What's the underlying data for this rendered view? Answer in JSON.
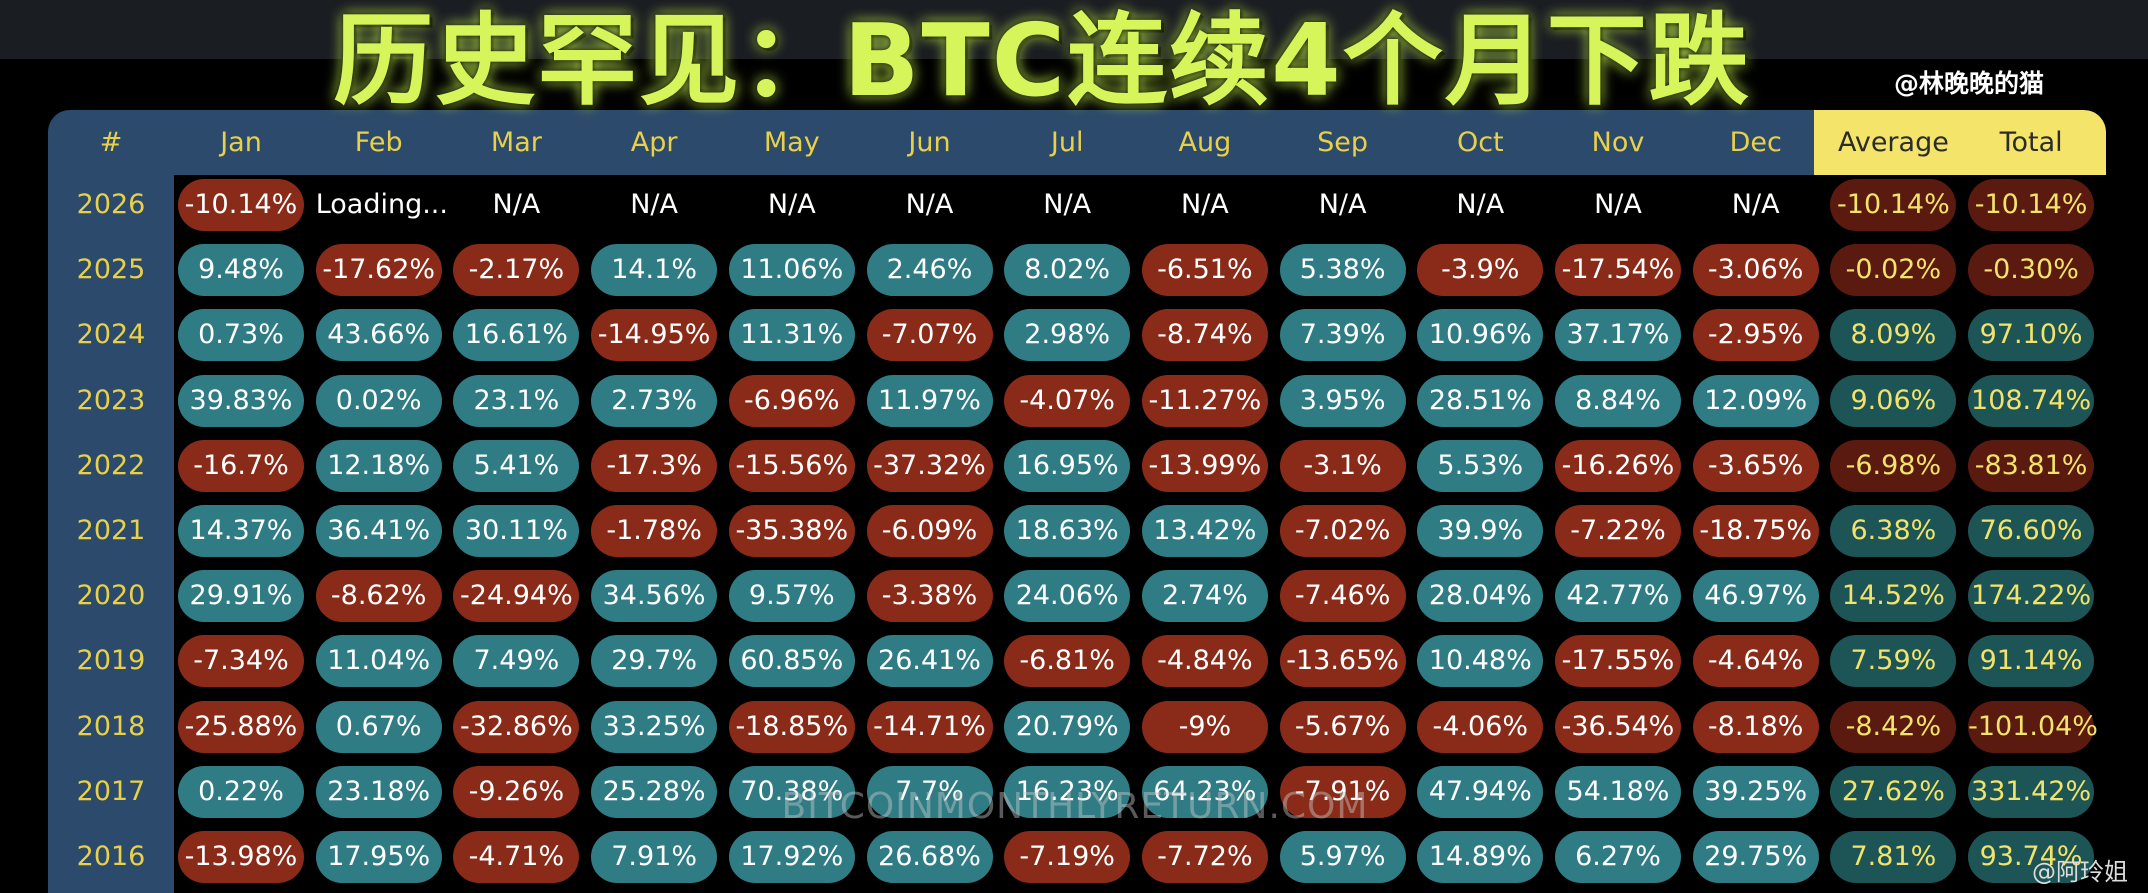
{
  "title": "历史罕见：BTC连续4个月下跌",
  "author_tag": "@林晚晚的猫",
  "table": {
    "headers": [
      "#",
      "Jan",
      "Feb",
      "Mar",
      "Apr",
      "May",
      "Jun",
      "Jul",
      "Aug",
      "Sep",
      "Oct",
      "Nov",
      "Dec",
      "Average",
      "Total"
    ],
    "rows": [
      [
        "2026",
        "-10.14%",
        "Loading...",
        "N/A",
        "N/A",
        "N/A",
        "N/A",
        "N/A",
        "N/A",
        "N/A",
        "N/A",
        "N/A",
        "N/A",
        "-10.14%",
        "-10.14%"
      ],
      [
        "2025",
        "9.48%",
        "-17.62%",
        "-2.17%",
        "14.1%",
        "11.06%",
        "2.46%",
        "8.02%",
        "-6.51%",
        "5.38%",
        "-3.9%",
        "-17.54%",
        "-3.06%",
        "-0.02%",
        "-0.30%"
      ],
      [
        "2024",
        "0.73%",
        "43.66%",
        "16.61%",
        "-14.95%",
        "11.31%",
        "-7.07%",
        "2.98%",
        "-8.74%",
        "7.39%",
        "10.96%",
        "37.17%",
        "-2.95%",
        "8.09%",
        "97.10%"
      ],
      [
        "2023",
        "39.83%",
        "0.02%",
        "23.1%",
        "2.73%",
        "-6.96%",
        "11.97%",
        "-4.07%",
        "-11.27%",
        "3.95%",
        "28.51%",
        "8.84%",
        "12.09%",
        "9.06%",
        "108.74%"
      ],
      [
        "2022",
        "-16.7%",
        "12.18%",
        "5.41%",
        "-17.3%",
        "-15.56%",
        "-37.32%",
        "16.95%",
        "-13.99%",
        "-3.1%",
        "5.53%",
        "-16.26%",
        "-3.65%",
        "-6.98%",
        "-83.81%"
      ],
      [
        "2021",
        "14.37%",
        "36.41%",
        "30.11%",
        "-1.78%",
        "-35.38%",
        "-6.09%",
        "18.63%",
        "13.42%",
        "-7.02%",
        "39.9%",
        "-7.22%",
        "-18.75%",
        "6.38%",
        "76.60%"
      ],
      [
        "2020",
        "29.91%",
        "-8.62%",
        "-24.94%",
        "34.56%",
        "9.57%",
        "-3.38%",
        "24.06%",
        "2.74%",
        "-7.46%",
        "28.04%",
        "42.77%",
        "46.97%",
        "14.52%",
        "174.22%"
      ],
      [
        "2019",
        "-7.34%",
        "11.04%",
        "7.49%",
        "29.7%",
        "60.85%",
        "26.41%",
        "-6.81%",
        "-4.84%",
        "-13.65%",
        "10.48%",
        "-17.55%",
        "-4.64%",
        "7.59%",
        "91.14%"
      ],
      [
        "2018",
        "-25.88%",
        "0.67%",
        "-32.86%",
        "33.25%",
        "-18.85%",
        "-14.71%",
        "20.79%",
        "-9%",
        "-5.67%",
        "-4.06%",
        "-36.54%",
        "-8.18%",
        "-8.42%",
        "-101.04%"
      ],
      [
        "2017",
        "0.22%",
        "23.18%",
        "-9.26%",
        "25.28%",
        "70.38%",
        "7.7%",
        "16.23%",
        "64.23%",
        "-7.91%",
        "47.94%",
        "54.18%",
        "39.25%",
        "27.62%",
        "331.42%"
      ],
      [
        "2016",
        "-13.98%",
        "17.95%",
        "-4.71%",
        "7.91%",
        "17.92%",
        "26.68%",
        "-7.19%",
        "-7.72%",
        "5.97%",
        "14.89%",
        "6.27%",
        "29.75%",
        "7.81%",
        "93.74%"
      ]
    ]
  },
  "site_watermark": "BITCOINMONTHLYRETURN.COM",
  "credit": "@阿玲姐"
}
